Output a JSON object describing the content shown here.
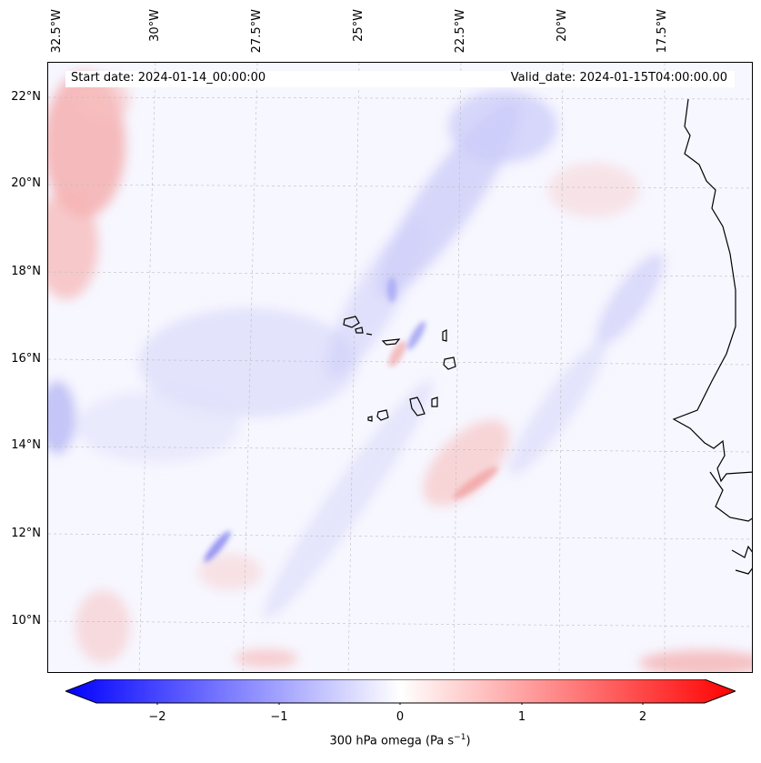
{
  "map": {
    "header": {
      "start_date": "Start date: 2024-01-14_00:00:00",
      "valid_date": "Valid_date: 2024-01-15T04:00:00.00"
    },
    "longitude_labels": [
      "32.5°W",
      "30°W",
      "27.5°W",
      "25°W",
      "22.5°W",
      "20°W",
      "17.5°W"
    ],
    "latitude_labels": [
      "22°N",
      "20°N",
      "18°N",
      "16°N",
      "14°N",
      "12°N",
      "10°N"
    ],
    "gridlines": true,
    "coastlines": true,
    "features": [
      "Cape Verde Islands",
      "West African coast"
    ],
    "field": "300 hPa omega"
  },
  "colorbar": {
    "label": "300 hPa omega (Pa s",
    "label_unit_exponent": "−1",
    "label_close": ")",
    "ticks": [
      "−2",
      "−1",
      "0",
      "1",
      "2"
    ],
    "range": [
      -2.6,
      2.6
    ],
    "colormap": "bwr",
    "colors": {
      "negative": "#0000ff",
      "zero": "#ffffff",
      "positive": "#ff0000"
    }
  }
}
